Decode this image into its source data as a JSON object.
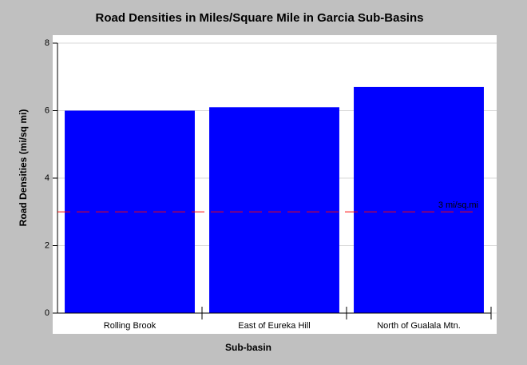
{
  "chart_data": {
    "type": "bar",
    "title": "Road Densities in Miles/Square Mile in Garcia Sub-Basins",
    "x_label": "Sub-basin",
    "y_label": "Road Densities (mi/sq mi)",
    "categories": [
      "Rolling Brook",
      "East of Eureka Hill",
      "North of Gualala Mtn."
    ],
    "values": [
      6.0,
      6.1,
      6.7
    ],
    "color": "#0000ff",
    "ylim": [
      0,
      8
    ],
    "yticks": [
      0,
      2,
      4,
      6,
      8
    ],
    "grid": true,
    "reference_line": {
      "value": 3,
      "label": "3 mi/sq.mi",
      "color": "#ff0000"
    }
  }
}
